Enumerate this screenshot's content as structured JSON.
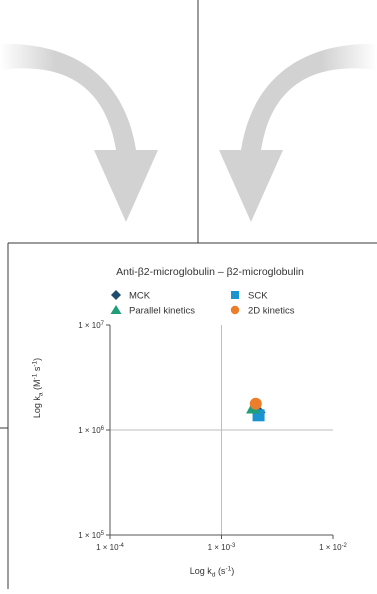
{
  "colors": {
    "divider": "#3a3a3a",
    "arrow": "#d2d2d2",
    "arrow_fade": "#ffffff",
    "axis": "#555555",
    "grid": "#bdbdbd",
    "text": "#333333"
  },
  "icons": [
    "curved-arrow-down-right-icon",
    "curved-arrow-down-left-icon"
  ],
  "chart_data": {
    "type": "scatter",
    "title": "Anti-β2-microglobulin – β2-microglobulin",
    "xlabel": "Log k",
    "xlabel_sub": "d",
    "xlabel_unit": " (s",
    "xlabel_unit_sup": "-1",
    "xlabel_unit_end": ")",
    "ylabel": "Log k",
    "ylabel_sub": "a",
    "ylabel_unit": " (M",
    "ylabel_unit_sup1": "-1",
    "ylabel_unit_mid": " s",
    "ylabel_unit_sup2": "-1",
    "ylabel_unit_end": ")",
    "x_scale": "log",
    "y_scale": "log",
    "xlim": [
      0.0001,
      0.01
    ],
    "ylim": [
      100000,
      10000000
    ],
    "x_ticks": [
      {
        "value": 0.0001,
        "label": "1 × 10",
        "sup": "-4"
      },
      {
        "value": 0.001,
        "label": "1 × 10",
        "sup": "-3"
      },
      {
        "value": 0.01,
        "label": "1 × 10",
        "sup": "-2"
      }
    ],
    "y_ticks": [
      {
        "value": 100000,
        "label": "1 × 10",
        "sup": "5"
      },
      {
        "value": 1000000,
        "label": "1 × 10",
        "sup": "6"
      },
      {
        "value": 10000000,
        "label": "1 × 10",
        "sup": "7"
      }
    ],
    "grid": true,
    "legend_position": "top",
    "series": [
      {
        "name": "MCK",
        "marker": "diamond",
        "color": "#1e4d6e",
        "points": [
          {
            "x": 0.00215,
            "y": 1470000
          }
        ]
      },
      {
        "name": "SCK",
        "marker": "square",
        "color": "#1a93d0",
        "points": [
          {
            "x": 0.00215,
            "y": 1380000
          }
        ]
      },
      {
        "name": "Parallel kinetics",
        "marker": "triangle",
        "color": "#1f9e79",
        "points": [
          {
            "x": 0.00192,
            "y": 1640000
          }
        ]
      },
      {
        "name": "2D kinetics",
        "marker": "circle",
        "color": "#ec7d2b",
        "points": [
          {
            "x": 0.00203,
            "y": 1780000
          }
        ]
      }
    ]
  }
}
